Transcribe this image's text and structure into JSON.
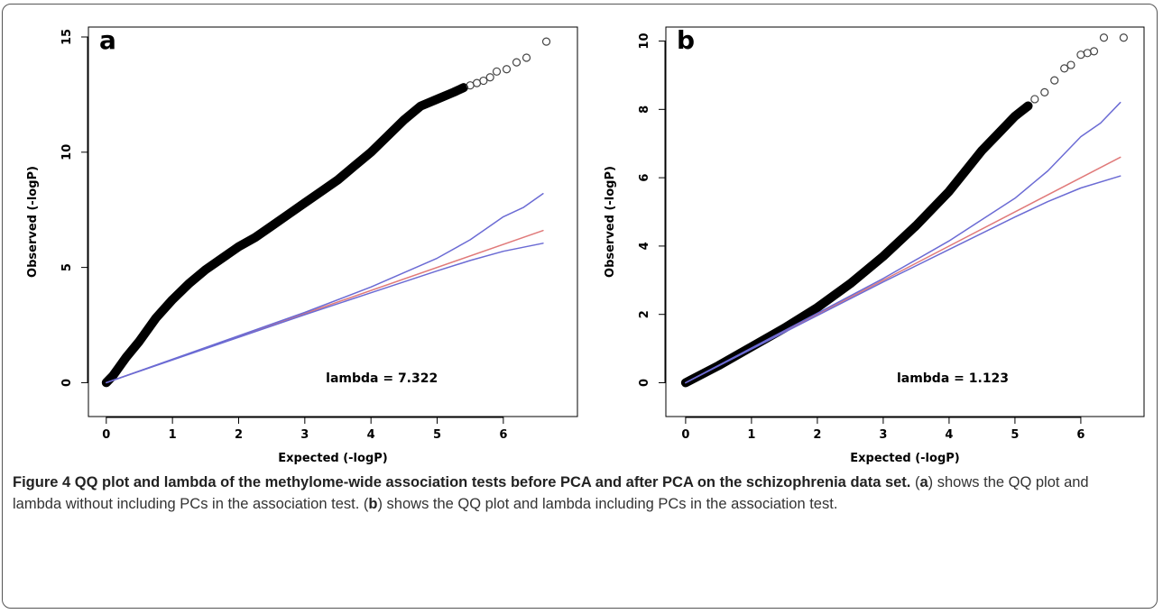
{
  "chart_data": [
    {
      "type": "scatter",
      "panel_label": "a",
      "xlabel": "Expected (-logP)",
      "ylabel": "Observed (-logP)",
      "annotation": "lambda = 7.322",
      "xlim": [
        -0.27,
        7.12
      ],
      "ylim": [
        -1.47,
        15.43
      ],
      "xticks": [
        0,
        1,
        2,
        3,
        4,
        5,
        6
      ],
      "yticks": [
        0,
        5,
        10,
        15
      ],
      "series": [
        {
          "marker": "dense",
          "color": "#000000",
          "x": [
            0,
            0.1,
            0.2,
            0.3,
            0.5,
            0.75,
            1,
            1.25,
            1.5,
            1.75,
            2,
            2.25,
            2.5,
            2.75,
            3,
            3.25,
            3.5,
            3.75,
            4,
            4.25,
            4.5,
            4.75,
            5,
            5.25,
            5.4
          ],
          "values": [
            0,
            0.3,
            0.7,
            1.1,
            1.8,
            2.8,
            3.6,
            4.3,
            4.9,
            5.4,
            5.9,
            6.3,
            6.8,
            7.3,
            7.8,
            8.3,
            8.8,
            9.4,
            10.0,
            10.7,
            11.4,
            12.0,
            12.3,
            12.6,
            12.8
          ]
        },
        {
          "marker": "circle",
          "color": "#444444",
          "x": [
            5.5,
            5.6,
            5.7,
            5.8,
            5.9,
            6.05,
            6.2,
            6.35,
            6.65
          ],
          "values": [
            12.9,
            13.0,
            13.1,
            13.25,
            13.5,
            13.6,
            13.9,
            14.1,
            14.8
          ]
        },
        {
          "marker": "line",
          "color": "#e07a7a",
          "x": [
            0,
            6.6
          ],
          "values": [
            0,
            6.6
          ]
        },
        {
          "marker": "line",
          "color": "#6b6bd4",
          "x": [
            0,
            3,
            4,
            5,
            5.5,
            6,
            6.3,
            6.6
          ],
          "values": [
            0,
            3.05,
            4.15,
            5.4,
            6.2,
            7.2,
            7.6,
            8.2
          ]
        },
        {
          "marker": "line",
          "color": "#6b6bd4",
          "x": [
            0,
            3,
            4,
            5,
            5.5,
            6,
            6.6
          ],
          "values": [
            0,
            2.95,
            3.9,
            4.85,
            5.3,
            5.7,
            6.05
          ]
        }
      ]
    },
    {
      "type": "scatter",
      "panel_label": "b",
      "xlabel": "Expected (-logP)",
      "ylabel": "Observed (-logP)",
      "annotation": "lambda = 1.123",
      "xlim": [
        -0.3,
        6.96
      ],
      "ylim": [
        -0.99,
        10.41
      ],
      "xticks": [
        0,
        1,
        2,
        3,
        4,
        5,
        6
      ],
      "yticks": [
        0,
        2,
        4,
        6,
        8,
        10
      ],
      "series": [
        {
          "marker": "dense",
          "color": "#000000",
          "x": [
            0,
            0.5,
            1,
            1.5,
            2,
            2.5,
            3,
            3.5,
            4,
            4.25,
            4.5,
            4.75,
            5,
            5.2
          ],
          "values": [
            0,
            0.5,
            1.05,
            1.6,
            2.2,
            2.9,
            3.7,
            4.6,
            5.6,
            6.2,
            6.8,
            7.3,
            7.8,
            8.1
          ]
        },
        {
          "marker": "circle",
          "color": "#444444",
          "x": [
            5.3,
            5.45,
            5.6,
            5.75,
            5.85,
            6.0,
            6.1,
            6.2,
            6.35,
            6.65
          ],
          "values": [
            8.3,
            8.5,
            8.85,
            9.2,
            9.3,
            9.6,
            9.65,
            9.7,
            10.1,
            10.1
          ]
        },
        {
          "marker": "line",
          "color": "#e07a7a",
          "x": [
            0,
            6.6
          ],
          "values": [
            0,
            6.6
          ]
        },
        {
          "marker": "line",
          "color": "#6b6bd4",
          "x": [
            0,
            3,
            4,
            5,
            5.5,
            6,
            6.3,
            6.6
          ],
          "values": [
            0,
            3.05,
            4.15,
            5.4,
            6.2,
            7.2,
            7.6,
            8.2
          ]
        },
        {
          "marker": "line",
          "color": "#6b6bd4",
          "x": [
            0,
            3,
            4,
            5,
            5.5,
            6,
            6.6
          ],
          "values": [
            0,
            2.95,
            3.9,
            4.85,
            5.3,
            5.7,
            6.05
          ]
        }
      ]
    }
  ],
  "caption": {
    "label": "Figure 4",
    "title": "QQ plot and lambda of the methylome-wide association tests before PCA and after PCA on the schizophrenia data set.",
    "body": [
      "(",
      "a",
      ") shows the QQ plot and lambda without including PCs in the association test. (",
      "b",
      ") shows the QQ plot and lambda including PCs in the association test."
    ]
  }
}
